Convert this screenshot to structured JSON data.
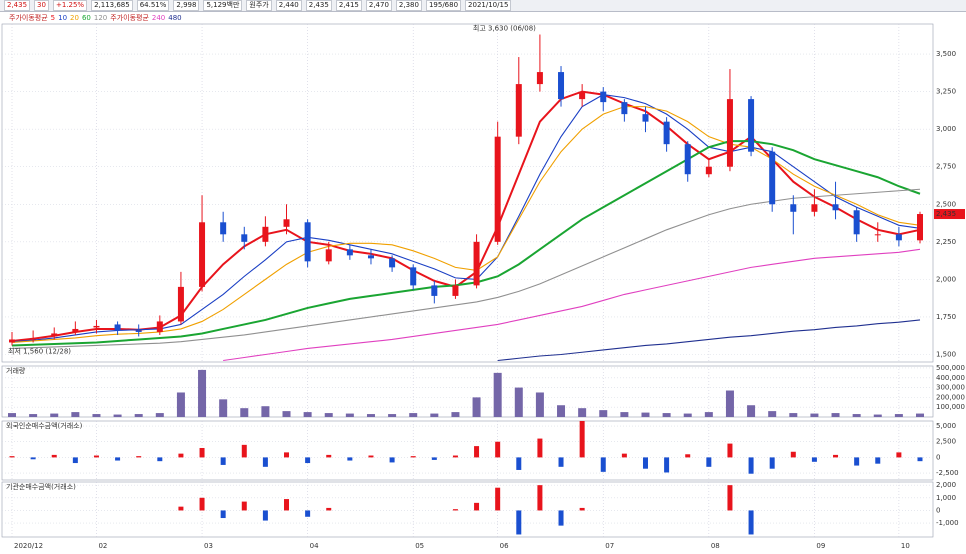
{
  "toolbar": {
    "items": [
      "2,435",
      "30",
      "+1.25%",
      "2,113,685",
      "64.51%",
      "2,998",
      "5,129백만",
      "원주가",
      "2,440",
      "2,435",
      "2,415",
      "2,470",
      "2,380",
      "195/680",
      "2021/10/15"
    ]
  },
  "chart_data": [
    {
      "type": "candlestick",
      "legend_title": "주가이동평균",
      "up_color": "#e8141c",
      "down_color": "#1a4fd0",
      "categories": [
        "2020/12",
        null,
        null,
        null,
        "02",
        null,
        null,
        null,
        null,
        "03",
        null,
        null,
        null,
        null,
        "04",
        null,
        null,
        null,
        null,
        "05",
        null,
        null,
        null,
        "06",
        null,
        null,
        null,
        null,
        "07",
        null,
        null,
        null,
        null,
        "08",
        null,
        null,
        null,
        null,
        "09",
        null,
        null,
        null,
        "10",
        null
      ],
      "open": [
        1580,
        1600,
        1620,
        1650,
        1680,
        1700,
        1660,
        1650,
        1720,
        1950,
        2380,
        2300,
        2250,
        2350,
        2380,
        2120,
        2200,
        2160,
        2140,
        2080,
        1960,
        1890,
        1960,
        2250,
        2950,
        3300,
        3380,
        3200,
        3250,
        3180,
        3100,
        3050,
        2900,
        2700,
        2750,
        3200,
        2850,
        2500,
        2450,
        2500,
        2460,
        2300,
        2300,
        2260
      ],
      "high": [
        1650,
        1660,
        1680,
        1720,
        1730,
        1720,
        1700,
        1760,
        2050,
        2560,
        2450,
        2350,
        2420,
        2500,
        2400,
        2250,
        2230,
        2200,
        2160,
        2100,
        1990,
        2000,
        2300,
        3050,
        3480,
        3630,
        3420,
        3300,
        3280,
        3200,
        3150,
        3080,
        2920,
        2800,
        3400,
        3220,
        2880,
        2560,
        2600,
        2650,
        2480,
        2380,
        2350,
        2450
      ],
      "low": [
        1560,
        1580,
        1600,
        1630,
        1640,
        1630,
        1620,
        1630,
        1700,
        1920,
        2250,
        2200,
        2220,
        2300,
        2080,
        2100,
        2130,
        2100,
        2050,
        1930,
        1840,
        1870,
        1940,
        2230,
        2900,
        3250,
        3150,
        3150,
        3120,
        3050,
        2980,
        2850,
        2650,
        2680,
        2720,
        2820,
        2450,
        2300,
        2420,
        2400,
        2250,
        2250,
        2220,
        2240
      ],
      "close": [
        1600,
        1610,
        1640,
        1670,
        1690,
        1660,
        1650,
        1720,
        1950,
        2380,
        2300,
        2250,
        2350,
        2400,
        2120,
        2200,
        2160,
        2140,
        2080,
        1960,
        1890,
        1960,
        2250,
        2950,
        3300,
        3380,
        3200,
        3250,
        3180,
        3100,
        3050,
        2900,
        2700,
        2750,
        3200,
        2850,
        2500,
        2450,
        2500,
        2460,
        2300,
        2300,
        2260,
        2435
      ],
      "series": [
        {
          "name": "5",
          "color": "#e8141c",
          "values": [
            1590,
            1605,
            1625,
            1650,
            1670,
            1670,
            1665,
            1680,
            1760,
            1950,
            2100,
            2220,
            2300,
            2330,
            2250,
            2230,
            2190,
            2170,
            2140,
            2060,
            1990,
            1950,
            2050,
            2350,
            2700,
            3050,
            3200,
            3250,
            3230,
            3170,
            3120,
            3020,
            2900,
            2800,
            2850,
            2950,
            2800,
            2650,
            2550,
            2480,
            2400,
            2330,
            2300,
            2330
          ]
        },
        {
          "name": "10",
          "color": "#1a3fc4",
          "values": [
            1585,
            1595,
            1610,
            1630,
            1650,
            1660,
            1665,
            1670,
            1700,
            1800,
            1900,
            2020,
            2130,
            2250,
            2280,
            2260,
            2230,
            2200,
            2170,
            2120,
            2070,
            2010,
            2000,
            2150,
            2420,
            2700,
            2950,
            3150,
            3230,
            3210,
            3170,
            3100,
            3000,
            2880,
            2850,
            2880,
            2850,
            2750,
            2650,
            2550,
            2480,
            2420,
            2360,
            2340
          ]
        },
        {
          "name": "20",
          "color": "#f0a000",
          "values": [
            1580,
            1590,
            1600,
            1610,
            1625,
            1635,
            1640,
            1650,
            1670,
            1720,
            1800,
            1900,
            2000,
            2100,
            2180,
            2220,
            2240,
            2240,
            2230,
            2190,
            2140,
            2080,
            2060,
            2150,
            2400,
            2650,
            2850,
            3000,
            3100,
            3150,
            3150,
            3120,
            3050,
            2950,
            2900,
            2880,
            2800,
            2700,
            2620,
            2560,
            2500,
            2430,
            2380,
            2360
          ]
        },
        {
          "name": "60",
          "color": "#1aa532",
          "values": [
            1560,
            1565,
            1570,
            1575,
            1580,
            1590,
            1600,
            1610,
            1620,
            1640,
            1670,
            1700,
            1730,
            1770,
            1810,
            1840,
            1870,
            1890,
            1910,
            1930,
            1950,
            1960,
            1980,
            2020,
            2100,
            2200,
            2300,
            2400,
            2480,
            2560,
            2640,
            2720,
            2800,
            2880,
            2920,
            2920,
            2900,
            2860,
            2800,
            2760,
            2720,
            2680,
            2620,
            2570
          ]
        },
        {
          "name": "120",
          "color": "#909090",
          "values": [
            1540,
            1545,
            1550,
            1555,
            1560,
            1565,
            1570,
            1575,
            1585,
            1600,
            1615,
            1630,
            1650,
            1670,
            1690,
            1710,
            1730,
            1750,
            1770,
            1790,
            1810,
            1830,
            1850,
            1880,
            1920,
            1970,
            2030,
            2090,
            2150,
            2210,
            2270,
            2330,
            2380,
            2430,
            2470,
            2500,
            2520,
            2540,
            2550,
            2560,
            2570,
            2580,
            2590,
            2600
          ]
        },
        {
          "name": "240",
          "color": "#e040c0",
          "values": [
            null,
            null,
            null,
            null,
            null,
            null,
            null,
            null,
            null,
            null,
            1460,
            1480,
            1500,
            1520,
            1540,
            1555,
            1570,
            1585,
            1600,
            1620,
            1640,
            1660,
            1680,
            1700,
            1730,
            1760,
            1790,
            1820,
            1860,
            1900,
            1930,
            1960,
            1990,
            2020,
            2050,
            2080,
            2100,
            2120,
            2140,
            2150,
            2160,
            2170,
            2180,
            2200
          ]
        },
        {
          "name": "480",
          "color": "#203090",
          "values": [
            null,
            null,
            null,
            null,
            null,
            null,
            null,
            null,
            null,
            null,
            null,
            null,
            null,
            null,
            null,
            null,
            null,
            null,
            null,
            null,
            null,
            null,
            null,
            1460,
            1475,
            1490,
            1500,
            1515,
            1530,
            1545,
            1560,
            1570,
            1585,
            1600,
            1615,
            1625,
            1640,
            1655,
            1665,
            1680,
            1690,
            1705,
            1715,
            1730
          ]
        }
      ],
      "ylim": [
        1450,
        3700
      ],
      "yticks": [
        {
          "value": 1500,
          "label": "1,500"
        },
        {
          "value": 1750,
          "label": "1,750"
        },
        {
          "value": 2000,
          "label": "2,000"
        },
        {
          "value": 2250,
          "label": "2,250"
        },
        {
          "value": 2500,
          "label": "2,500"
        },
        {
          "value": 2750,
          "label": "2,750"
        },
        {
          "value": 3000,
          "label": "3,000"
        },
        {
          "value": 3250,
          "label": "3,250"
        },
        {
          "value": 3500,
          "label": "3,500"
        }
      ],
      "annotations": [
        {
          "text": "최고 3,630 (06/08)",
          "value": 3630
        },
        {
          "text": "최저 1,560 (12/28)",
          "value": 1560
        }
      ]
    },
    {
      "type": "bar",
      "title": "거래량",
      "color": "#7466a8",
      "values": [
        40000,
        30000,
        35000,
        50000,
        30000,
        25000,
        30000,
        40000,
        250000,
        480000,
        180000,
        90000,
        110000,
        60000,
        50000,
        40000,
        35000,
        30000,
        30000,
        40000,
        35000,
        50000,
        200000,
        450000,
        300000,
        250000,
        120000,
        90000,
        70000,
        50000,
        45000,
        40000,
        35000,
        50000,
        270000,
        120000,
        60000,
        40000,
        35000,
        40000,
        30000,
        25000,
        30000,
        35000
      ],
      "ylim": [
        0,
        520000
      ],
      "yticks": [
        {
          "value": 100000,
          "label": "100,000"
        },
        {
          "value": 200000,
          "label": "200,000"
        },
        {
          "value": 300000,
          "label": "300,000"
        },
        {
          "value": 400000,
          "label": "400,000"
        },
        {
          "value": 500000,
          "label": "500,000"
        }
      ]
    },
    {
      "type": "bar",
      "title": "외국인순매수금액(거래소)",
      "up_color": "#e8141c",
      "down_color": "#1a4fd0",
      "values": [
        200,
        -300,
        400,
        -900,
        300,
        -500,
        200,
        -600,
        600,
        1500,
        -1200,
        2000,
        -1500,
        800,
        -900,
        400,
        -500,
        300,
        -800,
        200,
        -400,
        300,
        1800,
        2500,
        -2000,
        3000,
        -1500,
        5800,
        -2300,
        600,
        -1800,
        -2400,
        500,
        -1500,
        2200,
        -2600,
        -1800,
        900,
        -700,
        400,
        -1300,
        -1000,
        800,
        -600
      ],
      "ylim": [
        -3600,
        5800
      ],
      "yticks": [
        {
          "value": -2500,
          "label": "-2,500"
        },
        0,
        {
          "value": 2500,
          "label": "2,500"
        },
        {
          "value": 5000,
          "label": "5,000"
        }
      ]
    },
    {
      "type": "bar",
      "title": "기관순매수금액(거래소)",
      "up_color": "#e8141c",
      "down_color": "#1a4fd0",
      "values": [
        0,
        0,
        0,
        0,
        0,
        0,
        0,
        0,
        300,
        1000,
        -600,
        700,
        -800,
        900,
        -500,
        200,
        0,
        0,
        0,
        0,
        0,
        100,
        600,
        1800,
        -1900,
        2000,
        -1200,
        200,
        0,
        0,
        0,
        0,
        0,
        0,
        2000,
        -1900,
        0,
        0,
        0,
        0,
        0,
        0,
        0,
        0
      ],
      "ylim": [
        -2100,
        2250
      ],
      "yticks": [
        {
          "value": -1000,
          "label": "-1,000"
        },
        0,
        {
          "value": 1000,
          "label": "1,000"
        },
        {
          "value": 2000,
          "label": "2,000"
        }
      ]
    }
  ]
}
